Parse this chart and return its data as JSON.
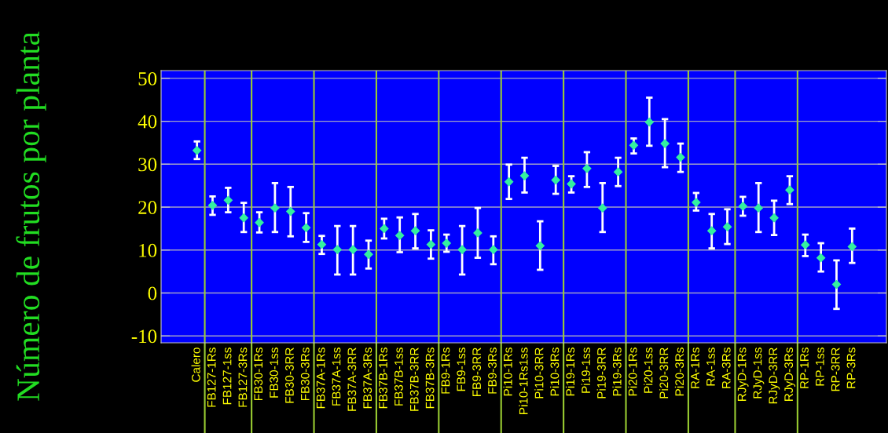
{
  "chart_data": {
    "type": "scatter",
    "ylabel": "Número de frutos por planta",
    "categories": [
      "Calero",
      "FB127-1Rs",
      "FB127-1ss",
      "FB127-3Rs",
      "FB30-1Rs",
      "FB30-1ss",
      "FB30-3RR",
      "FB30-3Rs",
      "FB37A-1Rs",
      "FB37A-1ss",
      "FB37A-3RR",
      "FB37A-3Rs",
      "FB37B-1Rs",
      "FB37B-1ss",
      "FB37B-3RR",
      "FB37B-3Rs",
      "FB9-1Rs",
      "FB9-1ss",
      "FB9-3RR",
      "FB9-3Rs",
      "Pi10-1Rs",
      "Pi10-1Rs1ss",
      "Pi10-3RR",
      "Pi10-3Rs",
      "Pi19-1Rs",
      "Pi19-1ss",
      "Pi19-3RR",
      "Pi19-3Rs",
      "Pi20-1Rs",
      "Pi20-1ss",
      "Pi20-3RR",
      "Pi20-3Rs",
      "RA-1Rs",
      "RA-1ss",
      "RA-3Rs",
      "RJyD-1Rs",
      "RJyD-1ss",
      "RJyD-3RR",
      "RJyD-3Rs",
      "RP-1Rs",
      "RP-1ss",
      "RP-3RR",
      "RP-3Rs"
    ],
    "values": [
      33.2,
      20.4,
      21.6,
      17.5,
      16.4,
      19.8,
      19.0,
      15.2,
      11.3,
      10.1,
      10.1,
      9.0,
      15.0,
      13.4,
      14.5,
      11.3,
      11.6,
      10.1,
      14.0,
      10.1,
      25.9,
      27.3,
      11.0,
      26.3,
      25.4,
      29.0,
      19.8,
      28.2,
      34.4,
      39.8,
      34.8,
      31.6,
      21.1,
      14.5,
      15.4,
      20.2,
      19.8,
      17.5,
      24.0,
      11.2,
      8.2,
      2.0,
      10.8
    ],
    "errors": [
      [
        31.2,
        35.3
      ],
      [
        18.2,
        22.5
      ],
      [
        18.8,
        24.5
      ],
      [
        14.2,
        21.0
      ],
      [
        14.1,
        18.8
      ],
      [
        14.2,
        25.6
      ],
      [
        13.2,
        24.7
      ],
      [
        11.9,
        18.6
      ],
      [
        9.1,
        13.3
      ],
      [
        4.3,
        15.6
      ],
      [
        4.3,
        15.6
      ],
      [
        5.7,
        12.2
      ],
      [
        12.7,
        17.3
      ],
      [
        9.5,
        17.6
      ],
      [
        10.4,
        18.4
      ],
      [
        8.0,
        14.6
      ],
      [
        9.6,
        13.6
      ],
      [
        4.3,
        15.6
      ],
      [
        8.2,
        19.8
      ],
      [
        6.7,
        13.2
      ],
      [
        21.9,
        29.9
      ],
      [
        23.4,
        31.5
      ],
      [
        5.4,
        16.7
      ],
      [
        23.1,
        29.6
      ],
      [
        23.4,
        27.2
      ],
      [
        24.7,
        32.8
      ],
      [
        14.2,
        25.6
      ],
      [
        24.9,
        31.5
      ],
      [
        32.5,
        36.0
      ],
      [
        34.3,
        45.5
      ],
      [
        29.3,
        40.5
      ],
      [
        28.2,
        34.8
      ],
      [
        19.2,
        23.3
      ],
      [
        10.4,
        18.4
      ],
      [
        11.4,
        19.5
      ],
      [
        18.0,
        22.4
      ],
      [
        14.2,
        25.6
      ],
      [
        13.5,
        21.5
      ],
      [
        20.7,
        27.2
      ],
      [
        8.6,
        13.6
      ],
      [
        5.0,
        11.6
      ],
      [
        -3.7,
        7.6
      ],
      [
        7.0,
        15.0
      ]
    ],
    "color": "#33f0a0",
    "marker": "diamond",
    "ylim": [
      -11.6,
      51.8
    ],
    "yticks": [
      -10,
      0,
      10,
      20,
      30,
      40,
      50
    ],
    "grid": "y"
  }
}
